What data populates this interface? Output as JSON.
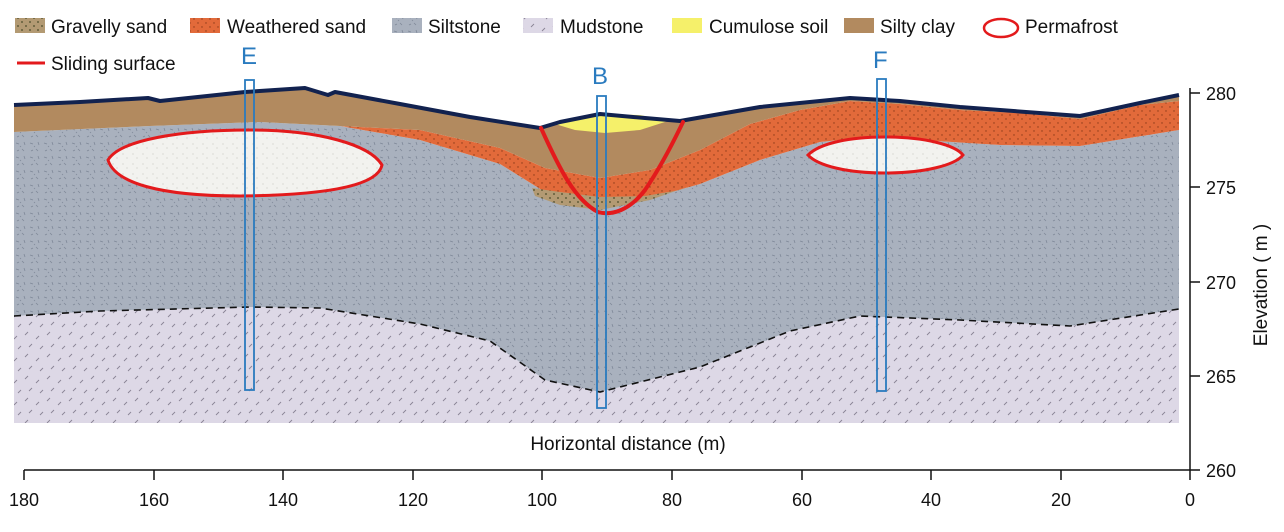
{
  "legend": [
    {
      "label": "Gravelly sand",
      "color": "#b39a73"
    },
    {
      "label": "Weathered sand",
      "color": "#e26a3a"
    },
    {
      "label": "Siltstone",
      "color": "#a9b1be"
    },
    {
      "label": "Mudstone",
      "color": "#ddd8e6"
    },
    {
      "label": "Cumulose soil",
      "color": "#f5f06a"
    },
    {
      "label": "Silty clay",
      "color": "#b28a5f"
    },
    {
      "label": "Permafrost",
      "color": "#e31a1c"
    },
    {
      "label": "Sliding surface",
      "color": "#e31a1c"
    }
  ],
  "boreholes": [
    "E",
    "B",
    "F"
  ],
  "x_axis": {
    "title": "Horizontal distance (m)",
    "ticks": [
      "180",
      "160",
      "140",
      "120",
      "100",
      "80",
      "60",
      "40",
      "20",
      "0"
    ]
  },
  "y_axis": {
    "title": "Elevation ( m )",
    "ticks": [
      "280",
      "275",
      "270",
      "265",
      "260"
    ]
  }
}
